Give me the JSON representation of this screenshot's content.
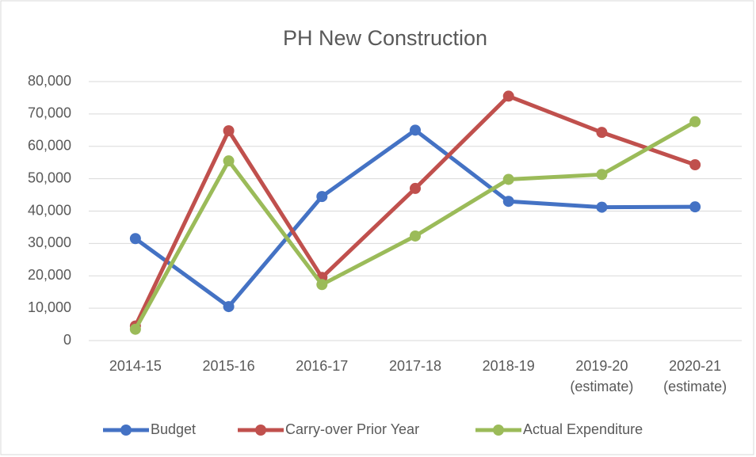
{
  "chart_data": {
    "type": "line",
    "title": "PH New Construction",
    "categories": [
      "2014-15",
      "2015-16",
      "2016-17",
      "2017-18",
      "2018-19",
      "2019-20\n(estimate)",
      "2020-21\n(estimate)"
    ],
    "series": [
      {
        "name": "Budget",
        "color": "#4472c4",
        "values": [
          31500,
          10500,
          44500,
          65000,
          43000,
          41200,
          41300
        ]
      },
      {
        "name": "Carry-over Prior Year",
        "color": "#c0504d",
        "values": [
          4500,
          64800,
          19500,
          47000,
          75500,
          64300,
          54300
        ]
      },
      {
        "name": "Actual Expenditure",
        "color": "#9bbb59",
        "values": [
          3500,
          55500,
          17300,
          32300,
          49800,
          51300,
          67600
        ]
      }
    ],
    "ylim": [
      0,
      80000
    ],
    "yticks": [
      0,
      {
        "value": 10000,
        "label": "10,000"
      },
      {
        "value": 20000,
        "label": "20,000"
      },
      {
        "value": 30000,
        "label": "30,000"
      },
      {
        "value": 40000,
        "label": "40,000"
      },
      {
        "value": 50000,
        "label": "50,000"
      },
      {
        "value": 60000,
        "label": "60,000"
      },
      {
        "value": 70000,
        "label": "70,000"
      },
      {
        "value": 80000,
        "label": "80,000"
      }
    ],
    "grid": true,
    "legend": "bottom"
  }
}
